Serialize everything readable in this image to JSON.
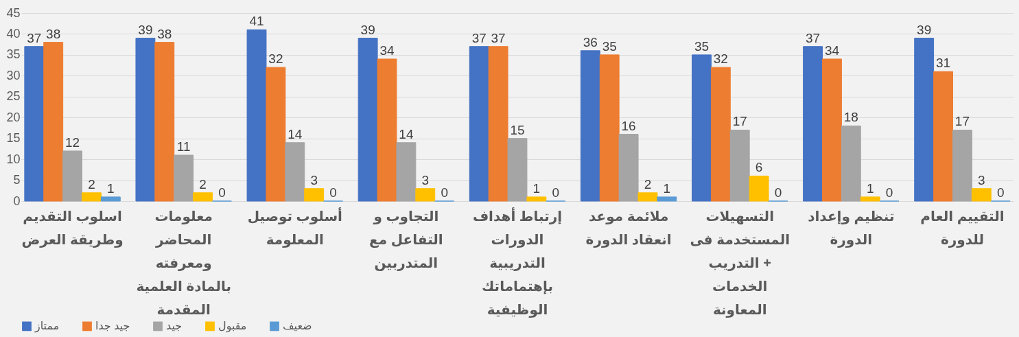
{
  "chart_data": {
    "type": "bar",
    "categories": [
      "اسلوب التقديم وطريقة العرض",
      "معلومات المحاضر ومعرفته بالمادة العلمية المقدمة",
      "أسلوب توصيل المعلومة",
      "التجاوب و التفاعل مع المتدربين",
      "إرتباط أهداف الدورات التدريبية بإهتماماتك الوظيفية",
      "ملائمة موعد انعقاد الدورة",
      "التسهيلات المستخدمة فى التدريب + الخدمات المعاونة",
      "تنظيم وإعداد الدورة",
      "التقييم العام للدورة"
    ],
    "series": [
      {
        "name": "ممتاز",
        "color": "#4472c4",
        "values": [
          37,
          39,
          41,
          39,
          37,
          36,
          35,
          37,
          39
        ]
      },
      {
        "name": "جيد جدا",
        "color": "#ed7d31",
        "values": [
          38,
          38,
          32,
          34,
          37,
          35,
          32,
          34,
          31
        ]
      },
      {
        "name": "جيد",
        "color": "#a5a5a5",
        "values": [
          12,
          11,
          14,
          14,
          15,
          16,
          17,
          18,
          17
        ]
      },
      {
        "name": "مقبول",
        "color": "#ffc000",
        "values": [
          2,
          2,
          3,
          3,
          1,
          2,
          6,
          1,
          3
        ]
      },
      {
        "name": "ضعيف",
        "color": "#5b9bd5",
        "values": [
          1,
          0,
          0,
          0,
          0,
          1,
          0,
          0,
          0
        ]
      }
    ],
    "ylim": [
      0,
      45
    ],
    "yticks": [
      0,
      5,
      10,
      15,
      20,
      25,
      30,
      35,
      40,
      45
    ],
    "grid": true,
    "legend": "bottom",
    "data_labels": true
  }
}
